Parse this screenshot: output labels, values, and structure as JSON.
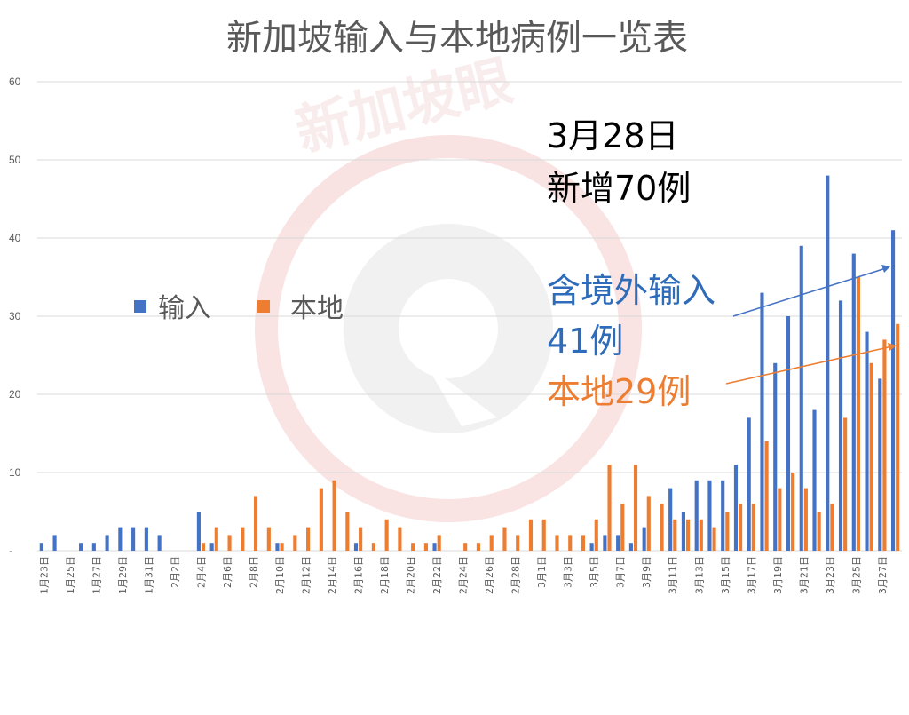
{
  "chart_data": {
    "type": "bar",
    "title": "新加坡输入与本地病例一览表",
    "y_ticks": [
      "60",
      "50",
      "40",
      "30",
      "20",
      "10",
      "-"
    ],
    "ylim": [
      0,
      60
    ],
    "grid": true,
    "legend_position": "left-middle",
    "categories": [
      "1月23日",
      "1月24日",
      "1月25日",
      "1月26日",
      "1月27日",
      "1月28日",
      "1月29日",
      "1月30日",
      "1月31日",
      "2月1日",
      "2月2日",
      "2月3日",
      "2月4日",
      "2月5日",
      "2月6日",
      "2月7日",
      "2月8日",
      "2月9日",
      "2月10日",
      "2月11日",
      "2月12日",
      "2月13日",
      "2月14日",
      "2月15日",
      "2月16日",
      "2月17日",
      "2月18日",
      "2月19日",
      "2月20日",
      "2月21日",
      "2月22日",
      "2月23日",
      "2月24日",
      "2月25日",
      "2月26日",
      "2月27日",
      "2月28日",
      "2月29日",
      "3月1日",
      "3月2日",
      "3月3日",
      "3月4日",
      "3月5日",
      "3月6日",
      "3月7日",
      "3月8日",
      "3月9日",
      "3月10日",
      "3月11日",
      "3月12日",
      "3月13日",
      "3月14日",
      "3月15日",
      "3月16日",
      "3月17日",
      "3月18日",
      "3月19日",
      "3月20日",
      "3月21日",
      "3月22日",
      "3月23日",
      "3月24日",
      "3月25日",
      "3月26日",
      "3月27日",
      "3月28日"
    ],
    "x_tick_labels": [
      "1月23日",
      "1月25日",
      "1月27日",
      "1月29日",
      "1月31日",
      "2月2日",
      "2月4日",
      "2月6日",
      "2月8日",
      "2月10日",
      "2月12日",
      "2月14日",
      "2月16日",
      "2月18日",
      "2月20日",
      "2月22日",
      "2月24日",
      "2月26日",
      "2月28日",
      "3月1日",
      "3月3日",
      "3月5日",
      "3月7日",
      "3月9日",
      "3月11日",
      "3月13日",
      "3月15日",
      "3月17日",
      "3月19日",
      "3月21日",
      "3月23日",
      "3月25日",
      "3月27日"
    ],
    "series": [
      {
        "name": "输入",
        "color": "#4472c4",
        "values": [
          1,
          2,
          0,
          1,
          1,
          2,
          3,
          3,
          3,
          2,
          0,
          0,
          5,
          1,
          0,
          0,
          0,
          0,
          1,
          0,
          0,
          0,
          0,
          0,
          1,
          0,
          0,
          0,
          0,
          0,
          1,
          0,
          0,
          0,
          0,
          0,
          0,
          0,
          0,
          0,
          0,
          0,
          1,
          2,
          2,
          1,
          3,
          0,
          8,
          5,
          9,
          9,
          9,
          11,
          17,
          33,
          24,
          30,
          39,
          18,
          48,
          32,
          38,
          28,
          22,
          41
        ]
      },
      {
        "name": "本地",
        "color": "#ed7d31",
        "values": [
          0,
          0,
          0,
          0,
          0,
          0,
          0,
          0,
          0,
          0,
          0,
          0,
          1,
          3,
          2,
          3,
          7,
          3,
          1,
          2,
          3,
          8,
          9,
          5,
          3,
          1,
          4,
          3,
          1,
          1,
          2,
          0,
          1,
          1,
          2,
          3,
          2,
          4,
          4,
          2,
          2,
          2,
          4,
          11,
          6,
          11,
          7,
          6,
          4,
          4,
          4,
          3,
          5,
          6,
          6,
          14,
          8,
          10,
          8,
          5,
          6,
          17,
          35,
          24,
          27,
          29
        ]
      }
    ],
    "annotations": {
      "date": "3月28日",
      "total": "新增70例",
      "imported_line1": "含境外输入",
      "imported_line2": "41例",
      "local": "本地29例"
    }
  },
  "watermark": {
    "text": "新加坡眼",
    "color": "#f2c9c9"
  }
}
